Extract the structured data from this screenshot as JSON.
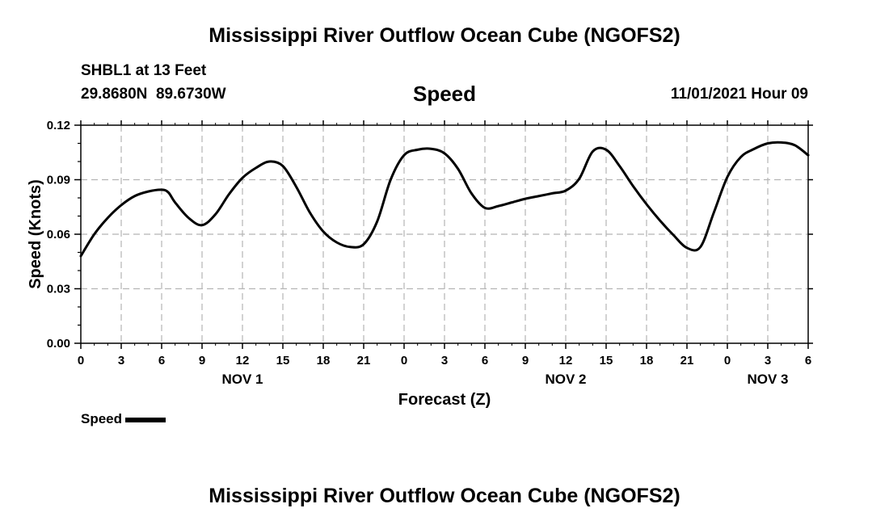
{
  "page": {
    "title": "Mississippi River Outflow Ocean Cube (NGOFS2)",
    "footer_title": "Mississippi River Outflow Ocean Cube (NGOFS2)",
    "station": "SHBL1 at 13 Feet",
    "coords": "29.8680N  89.6730W",
    "variable": "Speed",
    "datetime": "11/01/2021 Hour 09",
    "legend": {
      "label": "Speed",
      "color": "#000000"
    }
  },
  "chart_data": {
    "type": "line",
    "xlabel": "Forecast (Z)",
    "ylabel": "Speed (Knots)",
    "ylim": [
      0,
      0.12
    ],
    "xlim": [
      0,
      54
    ],
    "grid": true,
    "y_ticks": [
      "0.00",
      "0.03",
      "0.06",
      "0.09",
      "0.12"
    ],
    "x_ticks": [
      "0",
      "3",
      "6",
      "9",
      "12",
      "15",
      "18",
      "21",
      "0",
      "3",
      "6",
      "9",
      "12",
      "15",
      "18",
      "21",
      "0",
      "3",
      "6"
    ],
    "day_labels": [
      {
        "label": "NOV 1",
        "hour": 12
      },
      {
        "label": "NOV 2",
        "hour": 36
      },
      {
        "label": "NOV 3",
        "hour": 51
      }
    ],
    "series": [
      {
        "name": "Speed",
        "color": "#000000",
        "x": [
          0,
          1,
          2,
          3,
          4,
          5,
          6,
          6.5,
          7,
          8,
          9,
          10,
          11,
          12,
          13,
          14,
          15,
          16,
          17,
          18,
          19,
          20,
          21,
          22,
          23,
          24,
          25,
          26,
          27,
          28,
          29,
          30,
          31,
          32,
          33,
          34,
          35,
          36,
          37,
          38,
          39,
          40,
          41,
          42,
          43,
          44,
          45,
          46,
          47,
          48,
          49,
          50,
          51,
          52,
          53,
          54
        ],
        "y": [
          0.048,
          0.06,
          0.069,
          0.076,
          0.081,
          0.0835,
          0.0845,
          0.083,
          0.0775,
          0.069,
          0.065,
          0.071,
          0.082,
          0.091,
          0.0965,
          0.1,
          0.0975,
          0.086,
          0.072,
          0.0615,
          0.0555,
          0.053,
          0.0545,
          0.067,
          0.09,
          0.1035,
          0.1065,
          0.107,
          0.1045,
          0.096,
          0.0825,
          0.0745,
          0.0755,
          0.0775,
          0.0795,
          0.081,
          0.0825,
          0.084,
          0.0905,
          0.1055,
          0.1065,
          0.0975,
          0.0865,
          0.0765,
          0.0675,
          0.0595,
          0.0525,
          0.053,
          0.072,
          0.0915,
          0.1025,
          0.107,
          0.11,
          0.1105,
          0.109,
          0.1035
        ]
      }
    ]
  }
}
